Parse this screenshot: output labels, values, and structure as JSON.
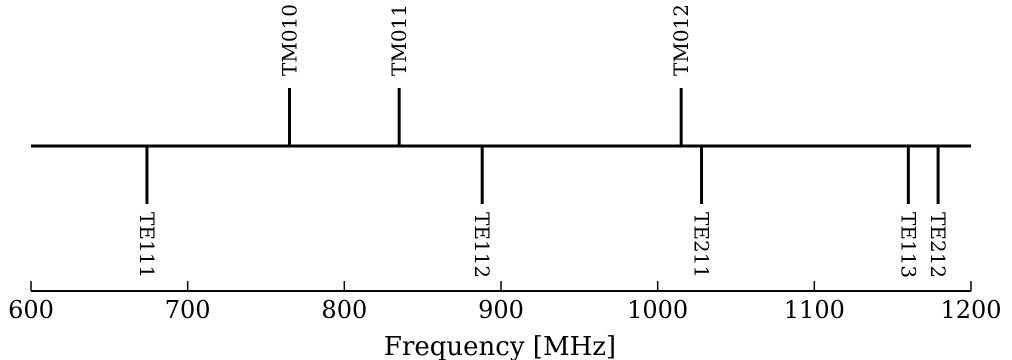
{
  "chart_data": {
    "type": "scatter",
    "title": "",
    "xlabel": "Frequency [MHz]",
    "ylabel": "",
    "xlim": [
      600,
      1200
    ],
    "xticks": [
      600,
      700,
      800,
      900,
      1000,
      1100,
      1200
    ],
    "grid": false,
    "legend": "none",
    "series": [
      {
        "name": "TM",
        "points": [
          {
            "label": "TM010",
            "x": 765
          },
          {
            "label": "TM011",
            "x": 835
          },
          {
            "label": "TM012",
            "x": 1015
          }
        ]
      },
      {
        "name": "TE",
        "points": [
          {
            "label": "TE111",
            "x": 674
          },
          {
            "label": "TE112",
            "x": 888
          },
          {
            "label": "TE211",
            "x": 1028
          },
          {
            "label": "TE113",
            "x": 1160
          },
          {
            "label": "TE212",
            "x": 1179
          }
        ]
      }
    ]
  },
  "colors": {
    "line": "#000000",
    "text": "#000000",
    "background": "#ffffff"
  }
}
